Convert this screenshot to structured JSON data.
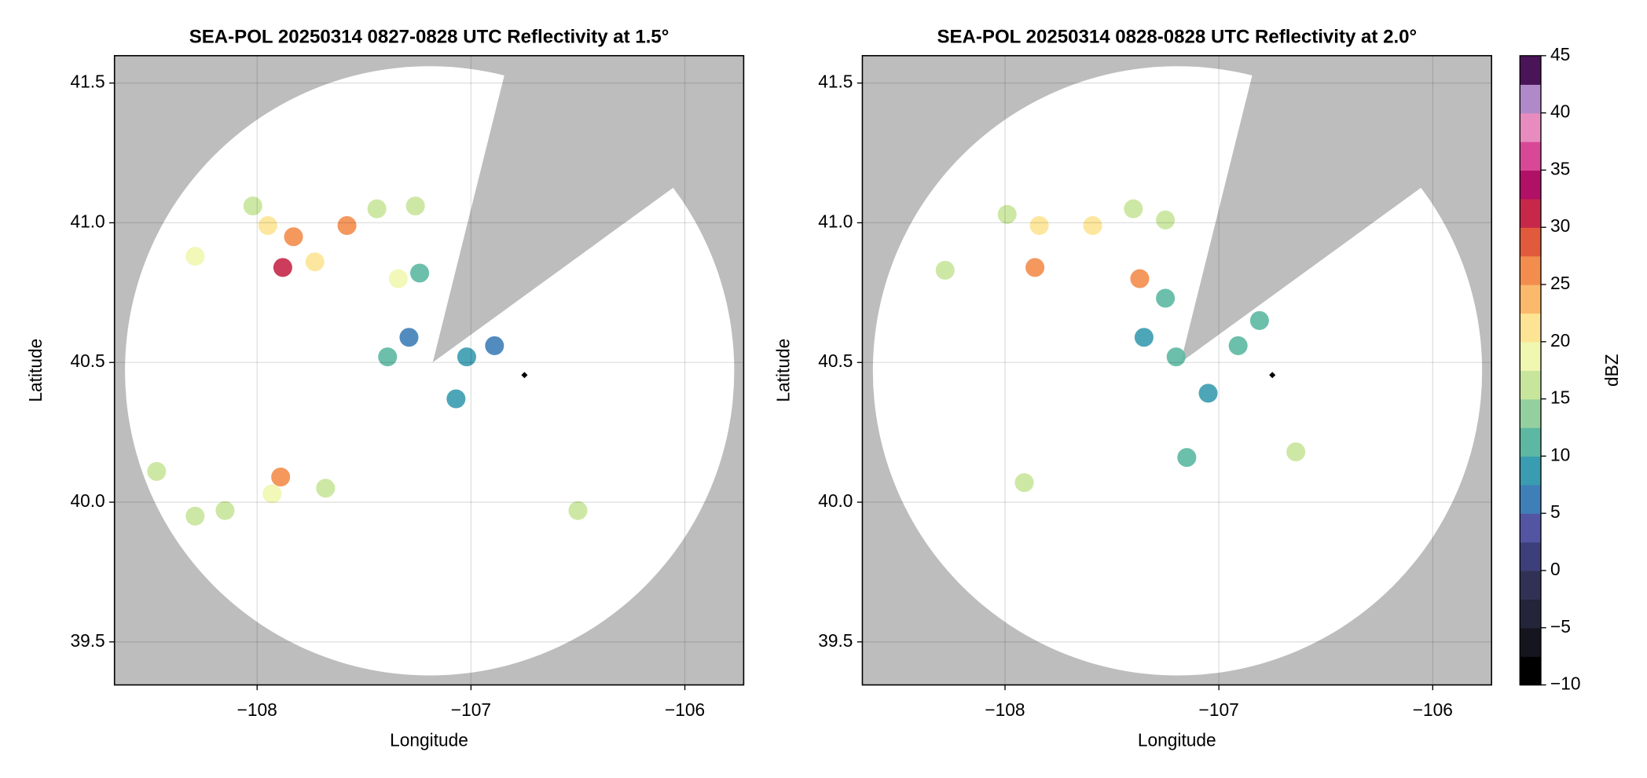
{
  "chart_data": [
    {
      "type": "scatter",
      "title": "SEA-POL 20250314 0827-0828 UTC Reflectivity at 1.5°",
      "xlabel": "Longitude",
      "ylabel": "Latitude",
      "xlim": [
        -108.667,
        -105.725
      ],
      "ylim": [
        39.346,
        41.598
      ],
      "xticks": [
        {
          "value": -108,
          "label": "−108"
        },
        {
          "value": -107,
          "label": "−107"
        },
        {
          "value": -106,
          "label": "−106"
        }
      ],
      "yticks": [
        {
          "value": 39.5,
          "label": "39.5"
        },
        {
          "value": 40,
          "label": "40.0"
        },
        {
          "value": 40.5,
          "label": "40.5"
        },
        {
          "value": 41,
          "label": "41.0"
        },
        {
          "value": 41.5,
          "label": "41.5"
        }
      ],
      "grid": true,
      "x": [
        -107.88,
        -107.83,
        -107.95,
        -108.02,
        -107.73,
        -107.58,
        -107.44,
        -107.26,
        -108.29,
        -107.34,
        -107.24,
        -107.29,
        -107.39,
        -106.89,
        -107.02,
        -107.07,
        -107.89,
        -107.93,
        -108.15,
        -108.29,
        -108.47,
        -107.68,
        -106.5
      ],
      "y": [
        40.84,
        40.95,
        40.99,
        41.06,
        40.86,
        40.99,
        41.05,
        41.06,
        40.88,
        40.8,
        40.82,
        40.59,
        40.52,
        40.56,
        40.52,
        40.37,
        40.09,
        40.03,
        39.97,
        39.95,
        40.11,
        40.05,
        39.97
      ],
      "values": [
        30,
        25,
        20,
        15,
        22,
        25,
        15,
        15,
        18,
        18,
        10,
        5,
        10,
        5,
        8,
        8,
        25,
        18,
        16,
        15,
        15,
        15,
        15
      ],
      "site": {
        "x": -106.75,
        "y": 40.455,
        "color": "#000000"
      }
    },
    {
      "type": "scatter",
      "title": "SEA-POL 20250314 0828-0828 UTC Reflectivity at 2.0°",
      "xlabel": "Longitude",
      "ylabel": "Latitude",
      "xlim": [
        -108.667,
        -105.725
      ],
      "ylim": [
        39.346,
        41.598
      ],
      "xticks": [
        {
          "value": -108,
          "label": "−108"
        },
        {
          "value": -107,
          "label": "−107"
        },
        {
          "value": -106,
          "label": "−106"
        }
      ],
      "yticks": [
        {
          "value": 39.5,
          "label": "39.5"
        },
        {
          "value": 40,
          "label": "40.0"
        },
        {
          "value": 40.5,
          "label": "40.5"
        },
        {
          "value": 41,
          "label": "41.0"
        },
        {
          "value": 41.5,
          "label": "41.5"
        }
      ],
      "grid": true,
      "x": [
        -107.86,
        -107.84,
        -107.99,
        -107.59,
        -107.4,
        -107.25,
        -107.37,
        -107.25,
        -107.35,
        -107.2,
        -106.91,
        -106.81,
        -107.05,
        -107.91,
        -108.28,
        -107.15,
        -106.64
      ],
      "y": [
        40.84,
        40.99,
        41.03,
        40.99,
        41.05,
        41.01,
        40.8,
        40.73,
        40.59,
        40.52,
        40.56,
        40.65,
        40.39,
        40.07,
        40.83,
        40.16,
        40.18
      ],
      "values": [
        25,
        20,
        15,
        22,
        15,
        15,
        25,
        10,
        8,
        10,
        10,
        12,
        8,
        16,
        15,
        10,
        15
      ],
      "site": {
        "x": -106.75,
        "y": 40.455,
        "color": "#000000"
      },
      "colorbar": {
        "label": "dBZ",
        "lim": [
          -10,
          45
        ],
        "ticks": [
          {
            "value": -10,
            "label": "−10"
          },
          {
            "value": -5,
            "label": "−5"
          },
          0,
          5,
          10,
          15,
          20,
          25,
          30,
          35,
          40,
          45
        ],
        "colors": [
          "#000000",
          "#15151f",
          "#24243a",
          "#313155",
          "#3d3f7a",
          "#5355a3",
          "#3f7fb8",
          "#3a9cb0",
          "#5cb8a2",
          "#94d09f",
          "#c8e69b",
          "#f0f7b0",
          "#fde495",
          "#fbba6b",
          "#f38d4d",
          "#e05a3b",
          "#c7284a",
          "#b01065",
          "#d94896",
          "#e88cc0",
          "#b08ac8",
          "#4a1458"
        ]
      }
    }
  ]
}
